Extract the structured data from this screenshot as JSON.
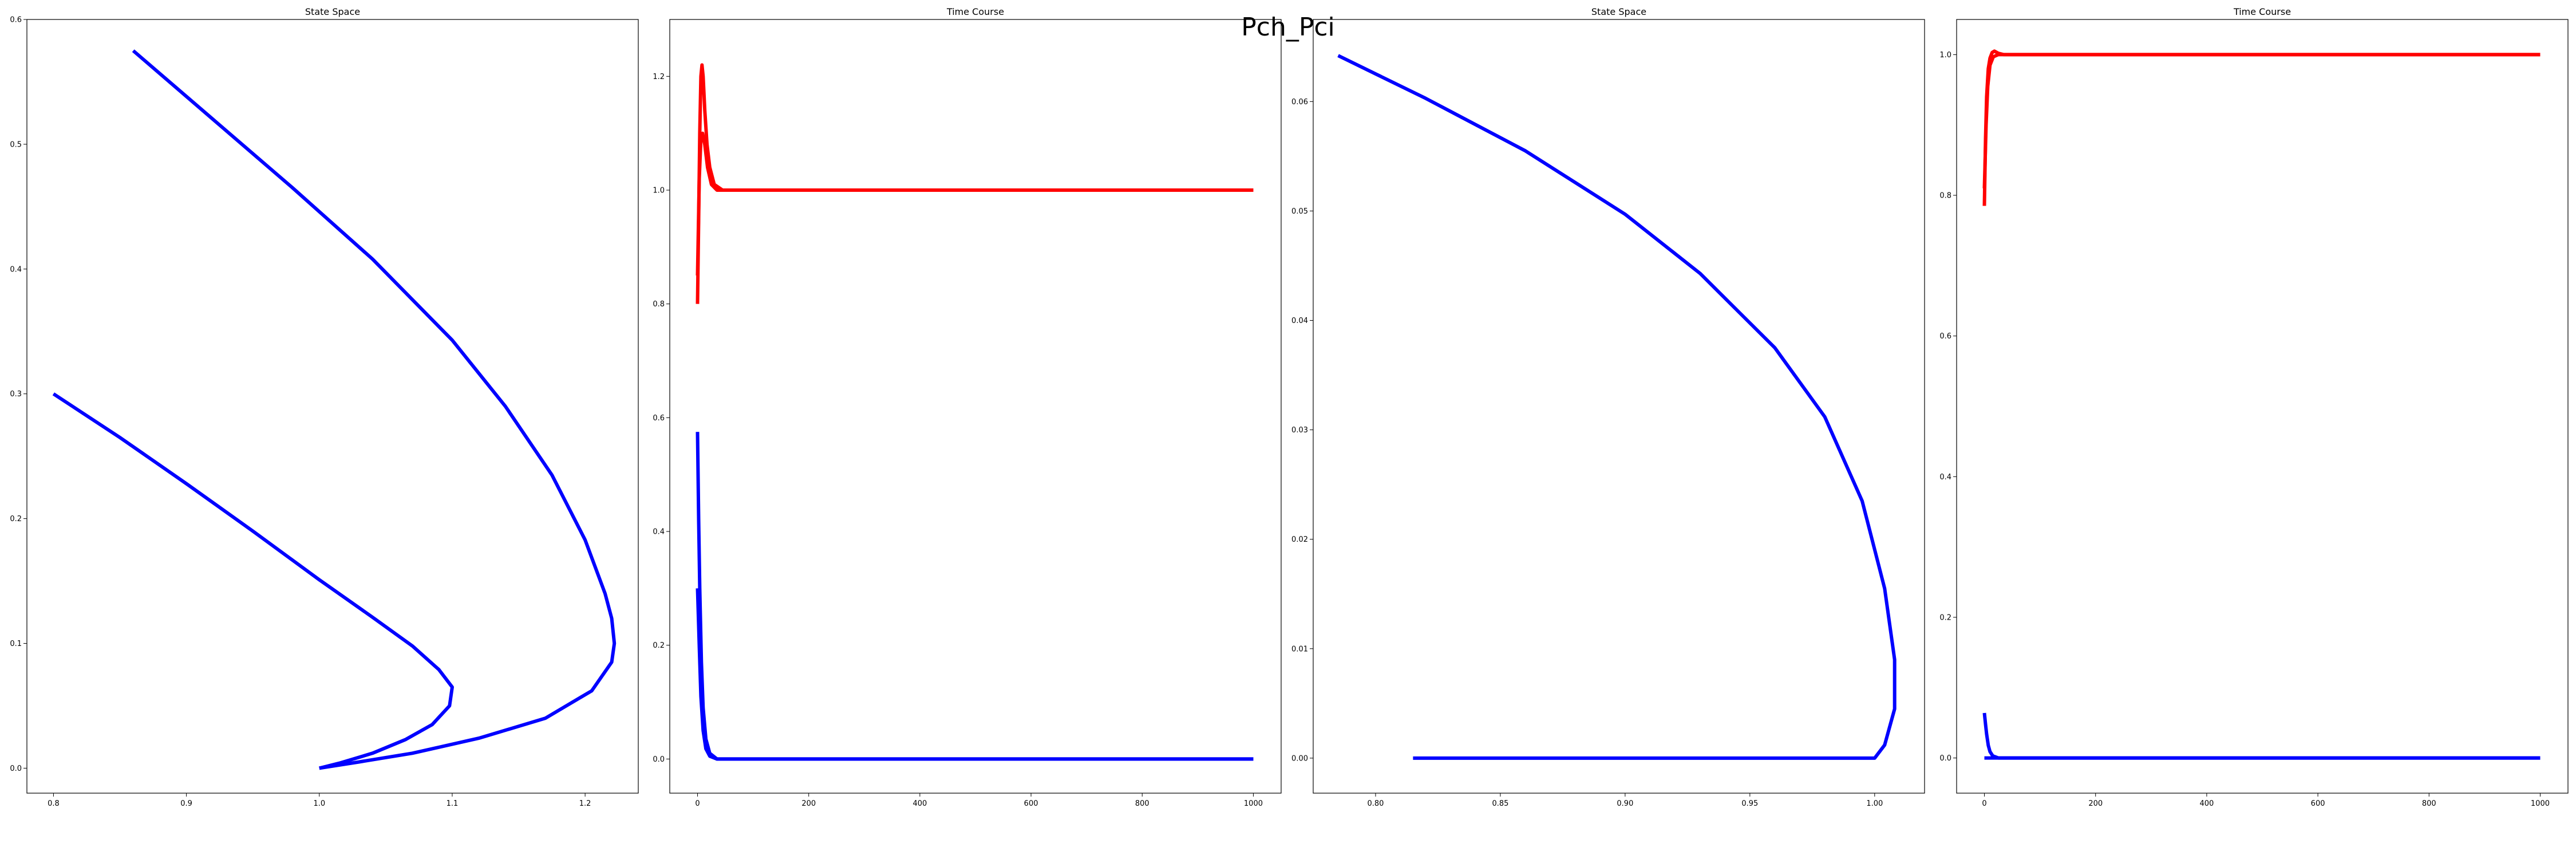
{
  "figure": {
    "suptitle": "Pch_Pci"
  },
  "colors": {
    "blue": "#0000ff",
    "red": "#ff0000"
  },
  "chart_data": [
    {
      "type": "line",
      "title": "State Space",
      "xlim": [
        0.78,
        1.24
      ],
      "ylim": [
        -0.02,
        0.6
      ],
      "xticks": [
        0.8,
        0.9,
        1.0,
        1.1,
        1.2
      ],
      "yticks": [
        0.0,
        0.1,
        0.2,
        0.3,
        0.4,
        0.5,
        0.6
      ],
      "xtick_labels": [
        "0.8",
        "0.9",
        "1.0",
        "1.1",
        "1.2"
      ],
      "ytick_labels": [
        "0.0",
        "0.1",
        "0.2",
        "0.3",
        "0.4",
        "0.5",
        "0.6"
      ],
      "grid": false,
      "series": [
        {
          "color": "#0000ff",
          "points": [
            [
              0.8,
              0.3
            ],
            [
              0.85,
              0.265
            ],
            [
              0.9,
              0.228
            ],
            [
              0.95,
              0.19
            ],
            [
              1.0,
              0.151
            ],
            [
              1.04,
              0.121
            ],
            [
              1.07,
              0.098
            ],
            [
              1.09,
              0.079
            ],
            [
              1.1,
              0.065
            ],
            [
              1.098,
              0.05
            ],
            [
              1.085,
              0.035
            ],
            [
              1.065,
              0.023
            ],
            [
              1.04,
              0.012
            ],
            [
              1.015,
              0.004
            ],
            [
              1.0,
              0.0
            ]
          ]
        },
        {
          "color": "#0000ff",
          "points": [
            [
              0.86,
              0.575
            ],
            [
              0.92,
              0.52
            ],
            [
              0.98,
              0.465
            ],
            [
              1.04,
              0.408
            ],
            [
              1.1,
              0.343
            ],
            [
              1.14,
              0.29
            ],
            [
              1.175,
              0.235
            ],
            [
              1.2,
              0.183
            ],
            [
              1.215,
              0.14
            ],
            [
              1.22,
              0.12
            ],
            [
              1.222,
              0.1
            ],
            [
              1.22,
              0.085
            ],
            [
              1.205,
              0.062
            ],
            [
              1.17,
              0.04
            ],
            [
              1.12,
              0.024
            ],
            [
              1.07,
              0.012
            ],
            [
              1.03,
              0.005
            ],
            [
              1.0,
              0.0
            ]
          ]
        }
      ]
    },
    {
      "type": "line",
      "title": "Time Course",
      "xlim": [
        -50,
        1050
      ],
      "ylim": [
        -0.06,
        1.3
      ],
      "xticks": [
        0,
        200,
        400,
        600,
        800,
        1000
      ],
      "yticks": [
        0.0,
        0.2,
        0.4,
        0.6,
        0.8,
        1.0,
        1.2
      ],
      "xtick_labels": [
        "0",
        "200",
        "400",
        "600",
        "800",
        "1000"
      ],
      "ytick_labels": [
        "0.0",
        "0.2",
        "0.4",
        "0.6",
        "0.8",
        "1.0",
        "1.2"
      ],
      "grid": false,
      "series": [
        {
          "color": "#ff0000",
          "points": [
            [
              0,
              0.8
            ],
            [
              2,
              0.95
            ],
            [
              4,
              1.1
            ],
            [
              6,
              1.2
            ],
            [
              8,
              1.22
            ],
            [
              10,
              1.2
            ],
            [
              13,
              1.14
            ],
            [
              17,
              1.08
            ],
            [
              22,
              1.04
            ],
            [
              30,
              1.01
            ],
            [
              45,
              1.0
            ],
            [
              1000,
              1.0
            ]
          ]
        },
        {
          "color": "#ff0000",
          "points": [
            [
              0,
              0.85
            ],
            [
              3,
              1.02
            ],
            [
              6,
              1.09
            ],
            [
              9,
              1.1
            ],
            [
              13,
              1.08
            ],
            [
              18,
              1.04
            ],
            [
              25,
              1.01
            ],
            [
              35,
              1.0
            ],
            [
              1000,
              1.0
            ]
          ]
        },
        {
          "color": "#0000ff",
          "points": [
            [
              0,
              0.575
            ],
            [
              2,
              0.42
            ],
            [
              4,
              0.3
            ],
            [
              7,
              0.17
            ],
            [
              10,
              0.09
            ],
            [
              15,
              0.035
            ],
            [
              22,
              0.01
            ],
            [
              35,
              0.0
            ],
            [
              1000,
              0.0
            ]
          ]
        },
        {
          "color": "#0000ff",
          "points": [
            [
              0,
              0.3
            ],
            [
              3,
              0.2
            ],
            [
              6,
              0.11
            ],
            [
              10,
              0.05
            ],
            [
              15,
              0.018
            ],
            [
              22,
              0.005
            ],
            [
              35,
              0.0
            ],
            [
              1000,
              0.0
            ]
          ]
        }
      ]
    },
    {
      "type": "line",
      "title": "State Space",
      "xlim": [
        0.775,
        1.02
      ],
      "ylim": [
        -0.0032,
        0.0675
      ],
      "xticks": [
        0.8,
        0.85,
        0.9,
        0.95,
        1.0
      ],
      "yticks": [
        0.0,
        0.01,
        0.02,
        0.03,
        0.04,
        0.05,
        0.06
      ],
      "xtick_labels": [
        "0.80",
        "0.85",
        "0.90",
        "0.95",
        "1.00"
      ],
      "ytick_labels": [
        "0.00",
        "0.01",
        "0.02",
        "0.03",
        "0.04",
        "0.05",
        "0.06"
      ],
      "grid": false,
      "series": [
        {
          "color": "#0000ff",
          "points": [
            [
              0.785,
              0.0642
            ],
            [
              0.82,
              0.0603
            ],
            [
              0.86,
              0.0555
            ],
            [
              0.9,
              0.0497
            ],
            [
              0.93,
              0.0443
            ],
            [
              0.96,
              0.0375
            ],
            [
              0.98,
              0.0312
            ],
            [
              0.995,
              0.0235
            ],
            [
              1.004,
              0.0155
            ],
            [
              1.008,
              0.009
            ],
            [
              1.008,
              0.0045
            ],
            [
              1.004,
              0.0012
            ],
            [
              1.0,
              0.0
            ],
            [
              0.815,
              0.0
            ]
          ]
        }
      ]
    },
    {
      "type": "line",
      "title": "Time Course",
      "xlim": [
        -50,
        1050
      ],
      "ylim": [
        -0.05,
        1.05
      ],
      "xticks": [
        0,
        200,
        400,
        600,
        800,
        1000
      ],
      "yticks": [
        0.0,
        0.2,
        0.4,
        0.6,
        0.8,
        1.0
      ],
      "xtick_labels": [
        "0",
        "200",
        "400",
        "600",
        "800",
        "1000"
      ],
      "ytick_labels": [
        "0.0",
        "0.2",
        "0.4",
        "0.6",
        "0.8",
        "1.0"
      ],
      "grid": false,
      "series": [
        {
          "color": "#ff0000",
          "points": [
            [
              0,
              0.785
            ],
            [
              2,
              0.88
            ],
            [
              4,
              0.94
            ],
            [
              7,
              0.98
            ],
            [
              10,
              0.995
            ],
            [
              14,
              1.003
            ],
            [
              18,
              1.005
            ],
            [
              25,
              1.002
            ],
            [
              35,
              1.0
            ],
            [
              1000,
              1.0
            ]
          ]
        },
        {
          "color": "#ff0000",
          "points": [
            [
              0,
              0.81
            ],
            [
              3,
              0.9
            ],
            [
              6,
              0.955
            ],
            [
              10,
              0.985
            ],
            [
              16,
              0.997
            ],
            [
              25,
              1.0
            ],
            [
              1000,
              1.0
            ]
          ]
        },
        {
          "color": "#0000ff",
          "points": [
            [
              0,
              0.064
            ],
            [
              2,
              0.048
            ],
            [
              4,
              0.034
            ],
            [
              7,
              0.018
            ],
            [
              10,
              0.009
            ],
            [
              15,
              0.003
            ],
            [
              25,
              0.0
            ],
            [
              1000,
              0.0
            ]
          ]
        },
        {
          "color": "#0000ff",
          "points": [
            [
              0,
              0.0
            ],
            [
              1000,
              0.0
            ]
          ]
        }
      ]
    }
  ]
}
